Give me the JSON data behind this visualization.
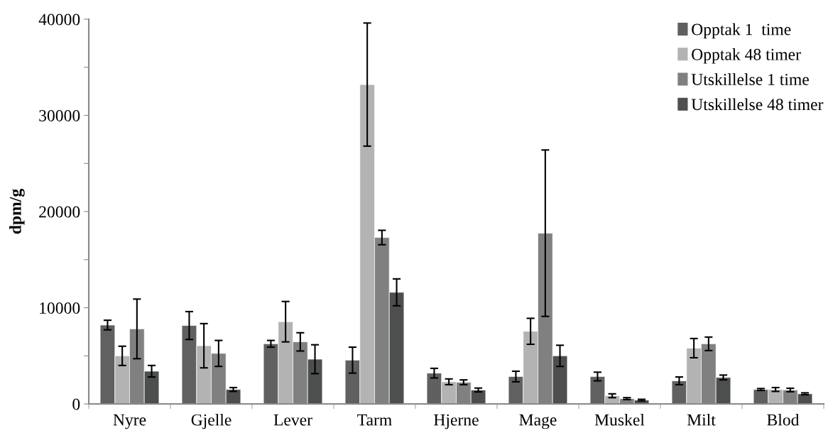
{
  "chart_data": {
    "type": "bar",
    "ylabel": "dpm/g",
    "categories": [
      "Nyre",
      "Gjelle",
      "Lever",
      "Tarm",
      "Hjerne",
      "Mage",
      "Muskel",
      "Milt",
      "Blod"
    ],
    "series": [
      {
        "name": "Opptak 1  time",
        "color": "#606060",
        "values": [
          8200,
          8150,
          6250,
          4550,
          3200,
          2850,
          2850,
          2400,
          1500
        ],
        "errors": [
          500,
          1450,
          350,
          1350,
          500,
          550,
          450,
          400,
          100
        ]
      },
      {
        "name": "Opptak 48 timer",
        "color": "#b3b3b3",
        "values": [
          5000,
          6050,
          8550,
          33200,
          2300,
          7550,
          850,
          5800,
          1500
        ],
        "errors": [
          1000,
          2300,
          2100,
          6400,
          300,
          1350,
          200,
          1000,
          200
        ]
      },
      {
        "name": "Utskillelse 1 time",
        "color": "#808080",
        "values": [
          7800,
          5250,
          6450,
          17300,
          2250,
          17750,
          550,
          6250,
          1450
        ],
        "errors": [
          3100,
          1350,
          950,
          750,
          250,
          8650,
          100,
          700,
          180
        ]
      },
      {
        "name": "Utskillelse 48 timer",
        "color": "#4d4f4e",
        "values": [
          3400,
          1500,
          4650,
          11600,
          1450,
          5000,
          400,
          2750,
          1050
        ],
        "errors": [
          600,
          200,
          1500,
          1400,
          200,
          1100,
          80,
          250,
          100
        ]
      }
    ],
    "ylim": [
      0,
      40000
    ],
    "yticks": [
      0,
      {
        "value": 5000,
        "label": null
      },
      10000,
      {
        "value": 15000,
        "label": null
      },
      20000,
      {
        "value": 25000,
        "label": null
      },
      30000,
      {
        "value": 35000,
        "label": null
      },
      40000
    ],
    "grid": false,
    "legend": "top right"
  }
}
